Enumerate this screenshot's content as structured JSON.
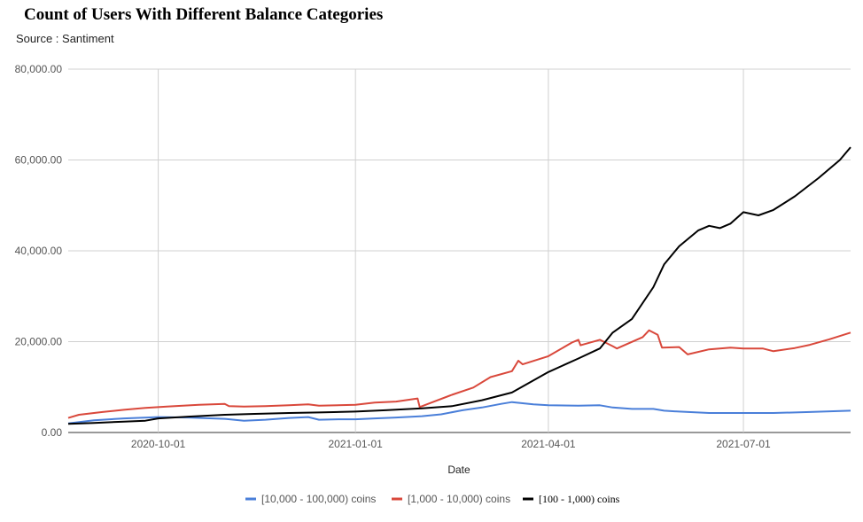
{
  "title": "Count of Users With Different Balance Categories",
  "subtitle": "Source : Santiment",
  "chart_data": {
    "type": "line",
    "title": "Count of Users With Different Balance Categories",
    "subtitle": "Source : Santiment",
    "xlabel": "Date",
    "ylabel": "",
    "xlim": [
      "2020-08-20",
      "2021-08-20"
    ],
    "ylim": [
      0,
      80000
    ],
    "y_ticks": [
      "0.00",
      "20,000.00",
      "40,000.00",
      "60,000.00",
      "80,000.00"
    ],
    "x_ticks": [
      "2020-10-01",
      "2021-01-01",
      "2021-04-01",
      "2021-07-01"
    ],
    "grid": true,
    "legend_position": "bottom",
    "series": [
      {
        "name": "[10,000 - 100,000) coins",
        "color": "#4a7fd9",
        "points": [
          [
            "2020-08-20",
            2000
          ],
          [
            "2020-09-01",
            2700
          ],
          [
            "2020-09-15",
            3100
          ],
          [
            "2020-10-01",
            3400
          ],
          [
            "2020-10-15",
            3300
          ],
          [
            "2020-11-01",
            3000
          ],
          [
            "2020-11-10",
            2600
          ],
          [
            "2020-11-20",
            2800
          ],
          [
            "2020-12-01",
            3200
          ],
          [
            "2020-12-10",
            3400
          ],
          [
            "2020-12-15",
            2800
          ],
          [
            "2020-12-25",
            2900
          ],
          [
            "2021-01-01",
            2900
          ],
          [
            "2021-01-10",
            3100
          ],
          [
            "2021-01-20",
            3300
          ],
          [
            "2021-02-01",
            3600
          ],
          [
            "2021-02-10",
            4000
          ],
          [
            "2021-02-20",
            4900
          ],
          [
            "2021-03-01",
            5500
          ],
          [
            "2021-03-10",
            6300
          ],
          [
            "2021-03-15",
            6700
          ],
          [
            "2021-03-25",
            6200
          ],
          [
            "2021-04-01",
            6000
          ],
          [
            "2021-04-15",
            5900
          ],
          [
            "2021-04-25",
            6000
          ],
          [
            "2021-05-01",
            5500
          ],
          [
            "2021-05-10",
            5200
          ],
          [
            "2021-05-20",
            5200
          ],
          [
            "2021-05-25",
            4800
          ],
          [
            "2021-06-01",
            4600
          ],
          [
            "2021-06-15",
            4300
          ],
          [
            "2021-07-01",
            4300
          ],
          [
            "2021-07-15",
            4300
          ],
          [
            "2021-08-01",
            4500
          ],
          [
            "2021-08-20",
            4800
          ]
        ]
      },
      {
        "name": "[1,000 - 10,000) coins",
        "color": "#d9483b",
        "points": [
          [
            "2020-08-20",
            3200
          ],
          [
            "2020-08-25",
            3900
          ],
          [
            "2020-09-05",
            4500
          ],
          [
            "2020-09-15",
            5000
          ],
          [
            "2020-09-25",
            5400
          ],
          [
            "2020-10-05",
            5700
          ],
          [
            "2020-10-20",
            6100
          ],
          [
            "2020-11-01",
            6300
          ],
          [
            "2020-11-03",
            5800
          ],
          [
            "2020-11-10",
            5700
          ],
          [
            "2020-11-20",
            5800
          ],
          [
            "2020-12-01",
            6000
          ],
          [
            "2020-12-10",
            6200
          ],
          [
            "2020-12-15",
            5900
          ],
          [
            "2021-01-01",
            6100
          ],
          [
            "2021-01-10",
            6600
          ],
          [
            "2021-01-20",
            6800
          ],
          [
            "2021-01-30",
            7500
          ],
          [
            "2021-01-31",
            5600
          ],
          [
            "2021-02-05",
            6500
          ],
          [
            "2021-02-15",
            8300
          ],
          [
            "2021-02-25",
            9900
          ],
          [
            "2021-03-05",
            12200
          ],
          [
            "2021-03-15",
            13500
          ],
          [
            "2021-03-18",
            15800
          ],
          [
            "2021-03-20",
            15000
          ],
          [
            "2021-04-01",
            16800
          ],
          [
            "2021-04-12",
            19800
          ],
          [
            "2021-04-15",
            20400
          ],
          [
            "2021-04-16",
            19200
          ],
          [
            "2021-04-25",
            20400
          ],
          [
            "2021-05-01",
            19000
          ],
          [
            "2021-05-03",
            18500
          ],
          [
            "2021-05-15",
            21000
          ],
          [
            "2021-05-18",
            22500
          ],
          [
            "2021-05-22",
            21500
          ],
          [
            "2021-05-24",
            18700
          ],
          [
            "2021-06-01",
            18800
          ],
          [
            "2021-06-05",
            17200
          ],
          [
            "2021-06-15",
            18300
          ],
          [
            "2021-06-25",
            18700
          ],
          [
            "2021-07-01",
            18500
          ],
          [
            "2021-07-10",
            18500
          ],
          [
            "2021-07-15",
            17900
          ],
          [
            "2021-07-25",
            18600
          ],
          [
            "2021-08-01",
            19300
          ],
          [
            "2021-08-10",
            20500
          ],
          [
            "2021-08-20",
            22000
          ]
        ]
      },
      {
        "name": "[100 - 1,000) coins",
        "color": "#000000",
        "points": [
          [
            "2020-08-20",
            1900
          ],
          [
            "2020-09-01",
            2100
          ],
          [
            "2020-09-15",
            2400
          ],
          [
            "2020-09-25",
            2600
          ],
          [
            "2020-10-01",
            3100
          ],
          [
            "2020-10-15",
            3500
          ],
          [
            "2020-11-01",
            3900
          ],
          [
            "2020-11-15",
            4100
          ],
          [
            "2020-12-01",
            4300
          ],
          [
            "2020-12-15",
            4400
          ],
          [
            "2021-01-01",
            4600
          ],
          [
            "2021-01-15",
            4900
          ],
          [
            "2021-02-01",
            5300
          ],
          [
            "2021-02-15",
            5800
          ],
          [
            "2021-03-01",
            7100
          ],
          [
            "2021-03-15",
            8800
          ],
          [
            "2021-04-01",
            13300
          ],
          [
            "2021-04-15",
            16300
          ],
          [
            "2021-04-25",
            18500
          ],
          [
            "2021-05-01",
            22000
          ],
          [
            "2021-05-10",
            25000
          ],
          [
            "2021-05-20",
            32000
          ],
          [
            "2021-05-25",
            37000
          ],
          [
            "2021-06-01",
            41000
          ],
          [
            "2021-06-10",
            44500
          ],
          [
            "2021-06-15",
            45500
          ],
          [
            "2021-06-20",
            45000
          ],
          [
            "2021-06-25",
            46000
          ],
          [
            "2021-07-01",
            48500
          ],
          [
            "2021-07-08",
            47800
          ],
          [
            "2021-07-15",
            49000
          ],
          [
            "2021-07-25",
            52000
          ],
          [
            "2021-08-05",
            56000
          ],
          [
            "2021-08-15",
            60000
          ],
          [
            "2021-08-20",
            62800
          ]
        ]
      }
    ]
  }
}
